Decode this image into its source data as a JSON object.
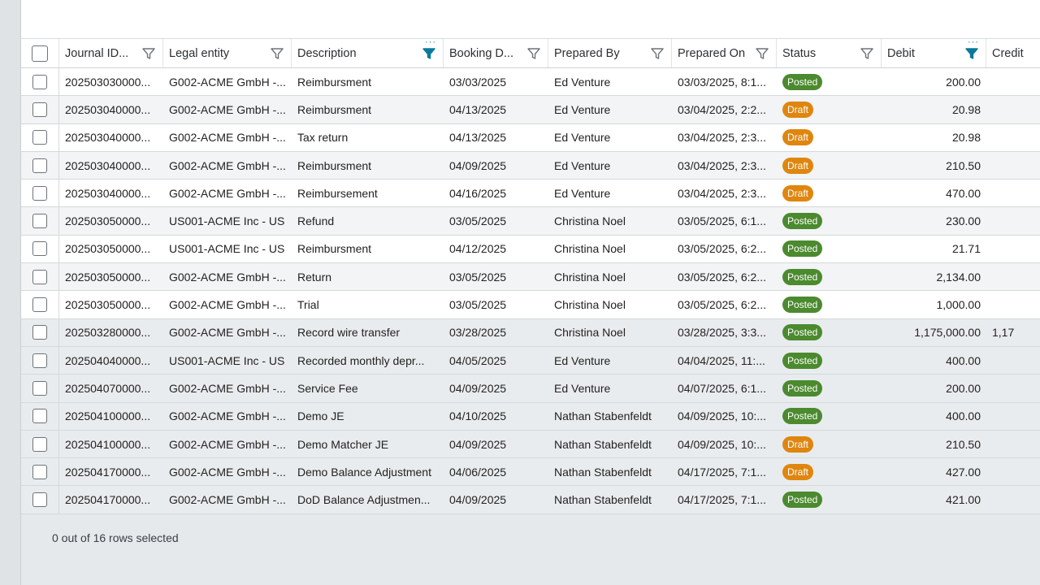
{
  "columns": {
    "journal_id": "Journal ID...",
    "legal_entity": "Legal entity",
    "description": "Description",
    "booking_date": "Booking D...",
    "prepared_by": "Prepared By",
    "prepared_on": "Prepared On",
    "status": "Status",
    "debit": "Debit",
    "credit": "Credit"
  },
  "colors": {
    "posted": "#4b8a2e",
    "draft": "#df860f",
    "filter_active": "#0a7a9a",
    "filter_inactive": "#6d7378"
  },
  "rows": [
    {
      "id": "202503030000...",
      "le": "G002-ACME GmbH -...",
      "desc": "Reimbursment",
      "book": "03/03/2025",
      "prep": "Ed Venture",
      "on": "03/03/2025, 8:1...",
      "status": "Posted",
      "debit": "200.00",
      "credit": ""
    },
    {
      "id": "202503040000...",
      "le": "G002-ACME GmbH -...",
      "desc": "Reimbursment",
      "book": "04/13/2025",
      "prep": "Ed Venture",
      "on": "03/04/2025, 2:2...",
      "status": "Draft",
      "debit": "20.98",
      "credit": ""
    },
    {
      "id": "202503040000...",
      "le": "G002-ACME GmbH -...",
      "desc": "Tax return",
      "book": "04/13/2025",
      "prep": "Ed Venture",
      "on": "03/04/2025, 2:3...",
      "status": "Draft",
      "debit": "20.98",
      "credit": ""
    },
    {
      "id": "202503040000...",
      "le": "G002-ACME GmbH -...",
      "desc": "Reimbursment",
      "book": "04/09/2025",
      "prep": "Ed Venture",
      "on": "03/04/2025, 2:3...",
      "status": "Draft",
      "debit": "210.50",
      "credit": ""
    },
    {
      "id": "202503040000...",
      "le": "G002-ACME GmbH -...",
      "desc": "Reimbursement",
      "book": "04/16/2025",
      "prep": "Ed Venture",
      "on": "03/04/2025, 2:3...",
      "status": "Draft",
      "debit": "470.00",
      "credit": ""
    },
    {
      "id": "202503050000...",
      "le": "US001-ACME Inc - US",
      "desc": "Refund",
      "book": "03/05/2025",
      "prep": "Christina Noel",
      "on": "03/05/2025, 6:1...",
      "status": "Posted",
      "debit": "230.00",
      "credit": ""
    },
    {
      "id": "202503050000...",
      "le": "US001-ACME Inc - US",
      "desc": "Reimbursment",
      "book": "04/12/2025",
      "prep": "Christina Noel",
      "on": "03/05/2025, 6:2...",
      "status": "Posted",
      "debit": "21.71",
      "credit": ""
    },
    {
      "id": "202503050000...",
      "le": "G002-ACME GmbH -...",
      "desc": "Return",
      "book": "03/05/2025",
      "prep": "Christina Noel",
      "on": "03/05/2025, 6:2...",
      "status": "Posted",
      "debit": "2,134.00",
      "credit": ""
    },
    {
      "id": "202503050000...",
      "le": "G002-ACME GmbH -...",
      "desc": "Trial",
      "book": "03/05/2025",
      "prep": "Christina Noel",
      "on": "03/05/2025, 6:2...",
      "status": "Posted",
      "debit": "1,000.00",
      "credit": ""
    },
    {
      "id": "202503280000...",
      "le": "G002-ACME GmbH -...",
      "desc": "Record wire transfer",
      "book": "03/28/2025",
      "prep": "Christina Noel",
      "on": "03/28/2025, 3:3...",
      "status": "Posted",
      "debit": "1,175,000.00",
      "credit": "1,17"
    },
    {
      "id": "202504040000...",
      "le": "US001-ACME Inc - US",
      "desc": "Recorded monthly depr...",
      "book": "04/05/2025",
      "prep": "Ed Venture",
      "on": "04/04/2025, 11:...",
      "status": "Posted",
      "debit": "400.00",
      "credit": ""
    },
    {
      "id": "202504070000...",
      "le": "G002-ACME GmbH -...",
      "desc": "Service Fee",
      "book": "04/09/2025",
      "prep": "Ed Venture",
      "on": "04/07/2025, 6:1...",
      "status": "Posted",
      "debit": "200.00",
      "credit": ""
    },
    {
      "id": "202504100000...",
      "le": "G002-ACME GmbH -...",
      "desc": "Demo JE",
      "book": "04/10/2025",
      "prep": "Nathan Stabenfeldt",
      "on": "04/09/2025, 10:...",
      "status": "Posted",
      "debit": "400.00",
      "credit": ""
    },
    {
      "id": "202504100000...",
      "le": "G002-ACME GmbH -...",
      "desc": "Demo Matcher JE",
      "book": "04/09/2025",
      "prep": "Nathan Stabenfeldt",
      "on": "04/09/2025, 10:...",
      "status": "Draft",
      "debit": "210.50",
      "credit": ""
    },
    {
      "id": "202504170000...",
      "le": "G002-ACME GmbH -...",
      "desc": "Demo Balance Adjustment",
      "book": "04/06/2025",
      "prep": "Nathan Stabenfeldt",
      "on": "04/17/2025, 7:1...",
      "status": "Draft",
      "debit": "427.00",
      "credit": ""
    },
    {
      "id": "202504170000...",
      "le": "G002-ACME GmbH -...",
      "desc": "DoD Balance Adjustmen...",
      "book": "04/09/2025",
      "prep": "Nathan Stabenfeldt",
      "on": "04/17/2025, 7:1...",
      "status": "Posted",
      "debit": "421.00",
      "credit": ""
    }
  ],
  "footer": {
    "selection_text": "0 out of 16 rows selected"
  }
}
